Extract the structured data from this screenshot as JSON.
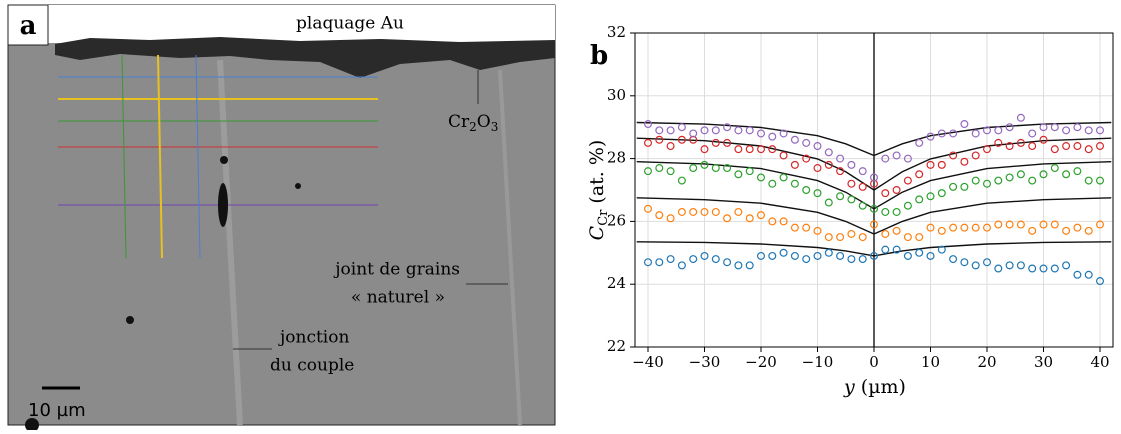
{
  "micrograph": {
    "panel_label": "a",
    "coating": "plaquage Au",
    "oxide": [
      "Cr",
      "2",
      "O",
      "3"
    ],
    "grain_boundary": [
      "joint de grains",
      "« naturel »"
    ],
    "junction": [
      "jonction",
      "du couple"
    ],
    "scale_bar": "10 µm"
  },
  "chart_data": {
    "type": "scatter",
    "panel_label": "b",
    "xlabel": [
      "y",
      "(µm)"
    ],
    "ylabel": [
      "C",
      "Cr",
      "(at. %)"
    ],
    "xlim": [
      -42.3,
      42.3
    ],
    "ylim": [
      22,
      32
    ],
    "xticks": [
      {
        "value": -40,
        "label": "−40"
      },
      {
        "value": -30,
        "label": "−30"
      },
      {
        "value": -20,
        "label": "−20"
      },
      {
        "value": -10,
        "label": "−10"
      },
      0,
      10,
      20,
      30,
      40
    ],
    "yticks": [
      22,
      24,
      26,
      28,
      30,
      32
    ],
    "grid": true,
    "vline": 0,
    "x": [
      -40,
      -38,
      -36,
      -34,
      -32,
      -30,
      -28,
      -26,
      -24,
      -22,
      -20,
      -18,
      -16,
      -14,
      -12,
      -10,
      -8,
      -6,
      -4,
      -2,
      0,
      2,
      4,
      6,
      8,
      10,
      12,
      14,
      16,
      18,
      20,
      22,
      24,
      26,
      28,
      30,
      32,
      34,
      36,
      38,
      40
    ],
    "series": [
      {
        "color": "#1f77b4",
        "values": [
          24.7,
          24.7,
          24.8,
          24.6,
          24.8,
          24.9,
          24.8,
          24.7,
          24.6,
          24.6,
          24.9,
          24.9,
          25.0,
          24.9,
          24.8,
          24.9,
          25.0,
          24.9,
          24.8,
          24.8,
          24.9,
          25.1,
          25.1,
          24.9,
          25.0,
          24.9,
          25.1,
          24.8,
          24.7,
          24.6,
          24.7,
          24.5,
          24.6,
          24.6,
          24.5,
          24.5,
          24.5,
          24.6,
          24.3,
          24.3,
          24.1
        ]
      },
      {
        "color": "#ff7f0e",
        "values": [
          26.4,
          26.2,
          26.1,
          26.3,
          26.3,
          26.3,
          26.3,
          26.1,
          26.3,
          26.1,
          26.2,
          26.0,
          26.0,
          25.8,
          25.8,
          25.7,
          25.5,
          25.5,
          25.6,
          25.5,
          25.9,
          25.6,
          25.7,
          25.5,
          25.5,
          25.8,
          25.7,
          25.8,
          25.8,
          25.8,
          25.8,
          25.9,
          25.9,
          25.9,
          25.7,
          25.9,
          25.9,
          25.7,
          25.8,
          25.7,
          25.9
        ]
      },
      {
        "color": "#2ca02c",
        "values": [
          27.6,
          27.7,
          27.6,
          27.3,
          27.7,
          27.8,
          27.7,
          27.7,
          27.5,
          27.6,
          27.4,
          27.2,
          27.4,
          27.2,
          27.0,
          26.9,
          26.6,
          26.8,
          26.7,
          26.5,
          26.4,
          26.3,
          26.3,
          26.5,
          26.7,
          26.8,
          26.9,
          27.1,
          27.1,
          27.3,
          27.2,
          27.3,
          27.4,
          27.5,
          27.3,
          27.5,
          27.7,
          27.5,
          27.6,
          27.3,
          27.3
        ]
      },
      {
        "color": "#d62728",
        "values": [
          28.5,
          28.6,
          28.4,
          28.6,
          28.6,
          28.3,
          28.5,
          28.5,
          28.3,
          28.3,
          28.3,
          28.3,
          28.1,
          27.8,
          28.0,
          27.7,
          27.8,
          27.6,
          27.2,
          27.1,
          27.2,
          26.9,
          27.0,
          27.3,
          27.5,
          27.8,
          27.8,
          28.1,
          27.9,
          28.1,
          28.3,
          28.5,
          28.4,
          28.5,
          28.4,
          28.6,
          28.3,
          28.4,
          28.4,
          28.3,
          28.4
        ]
      },
      {
        "color": "#9467bd",
        "values": [
          29.1,
          28.9,
          28.9,
          29.0,
          28.8,
          28.9,
          28.9,
          29.0,
          28.9,
          28.9,
          28.8,
          28.7,
          28.8,
          28.6,
          28.5,
          28.4,
          28.2,
          28.0,
          27.8,
          27.6,
          27.4,
          28.0,
          28.1,
          28.0,
          28.5,
          28.7,
          28.8,
          28.8,
          29.1,
          28.8,
          28.9,
          28.9,
          29.0,
          29.3,
          28.8,
          29.0,
          29.0,
          28.9,
          29.0,
          28.9,
          28.9
        ]
      }
    ],
    "model_x": [
      -42,
      -30,
      -20,
      -10,
      -5,
      0,
      5,
      10,
      20,
      30,
      42
    ],
    "model_color": "#111111",
    "models": [
      [
        25.35,
        25.33,
        25.28,
        25.17,
        25.06,
        24.9,
        25.06,
        25.17,
        25.28,
        25.33,
        25.35
      ],
      [
        26.75,
        26.69,
        26.58,
        26.29,
        26.0,
        25.6,
        26.0,
        26.29,
        26.58,
        26.69,
        26.75
      ],
      [
        27.9,
        27.83,
        27.68,
        27.3,
        26.93,
        26.4,
        26.93,
        27.3,
        27.68,
        27.83,
        27.9
      ],
      [
        28.65,
        28.57,
        28.4,
        27.99,
        27.58,
        27.0,
        27.58,
        27.99,
        28.4,
        28.57,
        28.65
      ],
      [
        29.15,
        29.1,
        28.99,
        28.73,
        28.47,
        28.1,
        28.47,
        28.73,
        28.99,
        29.1,
        29.15
      ]
    ]
  }
}
